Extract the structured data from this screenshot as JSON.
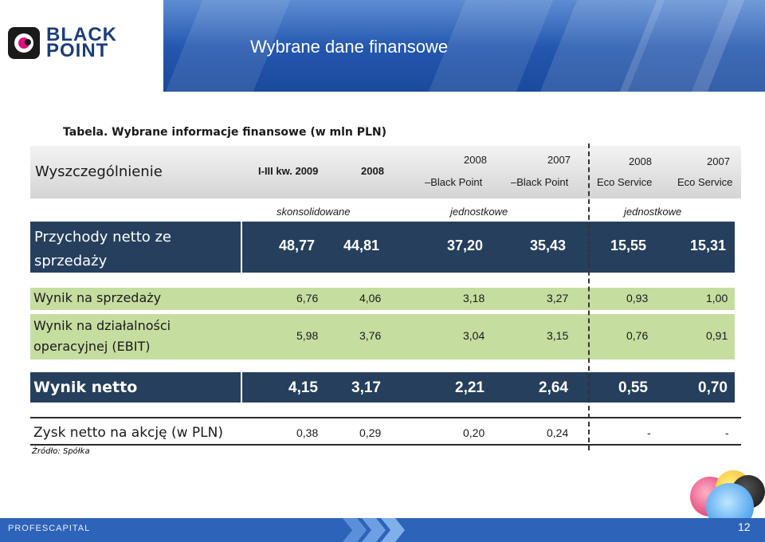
{
  "slide": {
    "title": "Wybrane dane finansowe",
    "page_number": "12"
  },
  "logo": {
    "line1": "BLACK",
    "line2": "POINT"
  },
  "footer": {
    "brand": "PROFESCAPITAL"
  },
  "table": {
    "caption": "Tabela. Wybrane informacje finansowe (w mln PLN)",
    "source": "Źródło: Spółka",
    "header": {
      "label": "Wyszczególnienie",
      "col1": "I-III kw. 2009",
      "col2": "2008",
      "col3_year": "2008",
      "col4_year": "2007",
      "col3_sub": "Black Point",
      "col4_sub": "Black Point",
      "col5_year": "2008",
      "col6_year": "2007",
      "col5_sub": "Eco Service",
      "col6_sub": "Eco Service"
    },
    "groups": {
      "g1": "skonsolidowane",
      "g2": "jednostkowe",
      "g3": "jednostkowe"
    },
    "rows": [
      {
        "label": "Przychody netto ze sprzedaży",
        "values": [
          "48,77",
          "44,81",
          "37,20",
          "35,43",
          "15,55",
          "15,31"
        ]
      },
      {
        "label": "Wynik na sprzedaży",
        "values": [
          "6,76",
          "4,06",
          "3,18",
          "3,27",
          "0,93",
          "1,00"
        ]
      },
      {
        "label": "Wynik na działalności operacyjnej (EBIT)",
        "values": [
          "5,98",
          "3,76",
          "3,04",
          "3,15",
          "0,76",
          "0,91"
        ]
      },
      {
        "label": "Wynik netto",
        "values": [
          "4,15",
          "3,17",
          "2,21",
          "2,64",
          "0,55",
          "0,70"
        ]
      },
      {
        "label": "Zysk netto na akcję (w PLN)",
        "values": [
          "0,38",
          "0,29",
          "0,20",
          "0,24",
          "-",
          "-"
        ]
      }
    ]
  },
  "colors": {
    "header_blue": "#2356ad",
    "dark_row": "#253f5d",
    "green_row": "#c6dda0"
  }
}
